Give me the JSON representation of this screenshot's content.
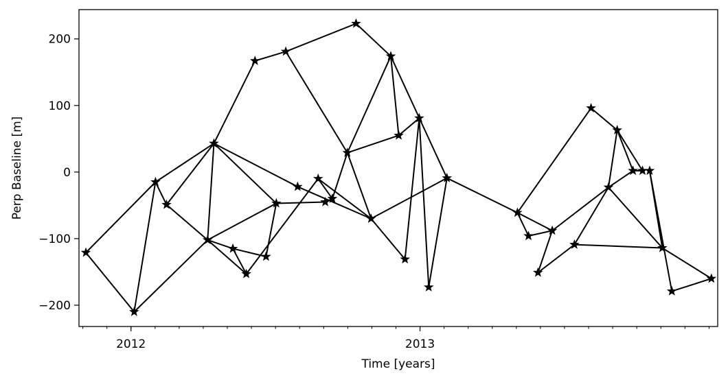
{
  "chart_data": {
    "type": "network",
    "title": "",
    "xlabel": "Time [years]",
    "ylabel": "Perp Baseline [m]",
    "xlim": [
      2011.82,
      2014.03
    ],
    "ylim": [
      -232,
      244
    ],
    "grid": false,
    "x_ticks": [
      {
        "value": 2012,
        "label": "2012"
      },
      {
        "value": 2013,
        "label": "2013"
      }
    ],
    "x_minor_tick_step_months": 1,
    "y_ticks": [
      {
        "value": 200,
        "label": "200"
      },
      {
        "value": 100,
        "label": "100"
      },
      {
        "value": 0,
        "label": "0"
      },
      {
        "value": -100,
        "label": "−100"
      },
      {
        "value": -200,
        "label": "−200"
      }
    ],
    "acquisitions": [
      {
        "date": "2011-11-05",
        "baseline": -121
      },
      {
        "date": "2012-01-05",
        "baseline": -210
      },
      {
        "date": "2012-02-01",
        "baseline": -15
      },
      {
        "date": "2012-02-15",
        "baseline": -49
      },
      {
        "date": "2012-04-07",
        "baseline": -102
      },
      {
        "date": "2012-04-15",
        "baseline": 43
      },
      {
        "date": "2012-05-09",
        "baseline": -115
      },
      {
        "date": "2012-05-26",
        "baseline": -153
      },
      {
        "date": "2012-06-06",
        "baseline": 167
      },
      {
        "date": "2012-06-20",
        "baseline": -127
      },
      {
        "date": "2012-07-03",
        "baseline": -47
      },
      {
        "date": "2012-07-15",
        "baseline": 181
      },
      {
        "date": "2012-07-30",
        "baseline": -22
      },
      {
        "date": "2012-08-25",
        "baseline": -10
      },
      {
        "date": "2012-09-03",
        "baseline": -45
      },
      {
        "date": "2012-09-12",
        "baseline": -40
      },
      {
        "date": "2012-10-01",
        "baseline": 29
      },
      {
        "date": "2012-10-12",
        "baseline": 223
      },
      {
        "date": "2012-10-31",
        "baseline": -70
      },
      {
        "date": "2012-11-25",
        "baseline": 174
      },
      {
        "date": "2012-12-05",
        "baseline": 55
      },
      {
        "date": "2012-12-13",
        "baseline": -131
      },
      {
        "date": "2012-12-31",
        "baseline": 81
      },
      {
        "date": "2013-01-12",
        "baseline": -173
      },
      {
        "date": "2013-02-04",
        "baseline": -9
      },
      {
        "date": "2013-05-04",
        "baseline": -61
      },
      {
        "date": "2013-05-18",
        "baseline": -96
      },
      {
        "date": "2013-05-30",
        "baseline": -151
      },
      {
        "date": "2013-06-17",
        "baseline": -88
      },
      {
        "date": "2013-07-15",
        "baseline": -109
      },
      {
        "date": "2013-08-05",
        "baseline": 96
      },
      {
        "date": "2013-08-27",
        "baseline": -23
      },
      {
        "date": "2013-09-07",
        "baseline": 63
      },
      {
        "date": "2013-09-27",
        "baseline": 2
      },
      {
        "date": "2013-10-09",
        "baseline": 2
      },
      {
        "date": "2013-10-18",
        "baseline": 2
      },
      {
        "date": "2013-11-03",
        "baseline": -114
      },
      {
        "date": "2013-11-15",
        "baseline": -179
      },
      {
        "date": "2014-01-04",
        "baseline": -160
      }
    ],
    "pairs": [
      [
        0,
        1
      ],
      [
        0,
        2
      ],
      [
        1,
        2
      ],
      [
        1,
        4
      ],
      [
        2,
        3
      ],
      [
        2,
        5
      ],
      [
        3,
        5
      ],
      [
        3,
        4
      ],
      [
        4,
        5
      ],
      [
        4,
        6
      ],
      [
        4,
        7
      ],
      [
        4,
        10
      ],
      [
        5,
        8
      ],
      [
        5,
        10
      ],
      [
        5,
        12
      ],
      [
        6,
        7
      ],
      [
        6,
        9
      ],
      [
        9,
        10
      ],
      [
        7,
        13
      ],
      [
        10,
        14
      ],
      [
        8,
        11
      ],
      [
        11,
        16
      ],
      [
        11,
        17
      ],
      [
        13,
        15
      ],
      [
        14,
        15
      ],
      [
        12,
        18
      ],
      [
        13,
        18
      ],
      [
        15,
        16
      ],
      [
        16,
        18
      ],
      [
        16,
        19
      ],
      [
        16,
        20
      ],
      [
        17,
        19
      ],
      [
        19,
        20
      ],
      [
        19,
        24
      ],
      [
        18,
        21
      ],
      [
        20,
        22
      ],
      [
        21,
        22
      ],
      [
        18,
        24
      ],
      [
        22,
        23
      ],
      [
        23,
        24
      ],
      [
        24,
        25
      ],
      [
        25,
        26
      ],
      [
        25,
        28
      ],
      [
        25,
        30
      ],
      [
        26,
        28
      ],
      [
        27,
        28
      ],
      [
        27,
        29
      ],
      [
        28,
        31
      ],
      [
        29,
        31
      ],
      [
        29,
        36
      ],
      [
        30,
        32
      ],
      [
        31,
        32
      ],
      [
        31,
        33
      ],
      [
        31,
        36
      ],
      [
        32,
        33
      ],
      [
        33,
        34
      ],
      [
        32,
        34
      ],
      [
        35,
        36
      ],
      [
        35,
        37
      ],
      [
        37,
        38
      ],
      [
        36,
        38
      ]
    ]
  }
}
